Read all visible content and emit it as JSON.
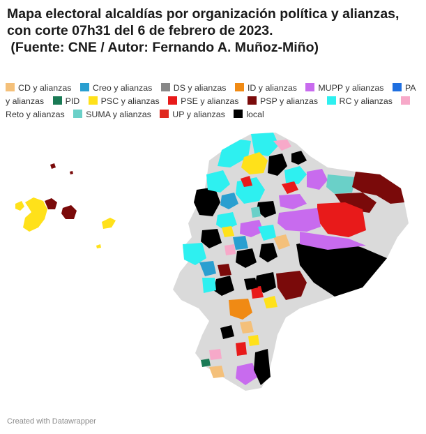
{
  "title_lines": [
    "Mapa electoral alcaldías por organización política y alianzas,",
    "con corte 07h31 del 6 de febrero de 2023.",
    " (Fuente: CNE / Autor: Fernando A. Muñoz-Miño)"
  ],
  "legend": [
    {
      "label": "CD y alianzas",
      "color": "#f4c07a"
    },
    {
      "label": "Creo y alianzas",
      "color": "#2a9fd0"
    },
    {
      "label": "DS y alianzas",
      "color": "#888888"
    },
    {
      "label": "ID y alianzas",
      "color": "#f08a14"
    },
    {
      "label": "MUPP y alianzas",
      "color": "#c86bee"
    },
    {
      "label": "PA y alianzas",
      "color": "#1f6fe0"
    },
    {
      "label": "PID",
      "color": "#1a7a55"
    },
    {
      "label": "PSC y alianzas",
      "color": "#ffe11a"
    },
    {
      "label": "PSE y alianzas",
      "color": "#e81a1a"
    },
    {
      "label": "PSP y alianzas",
      "color": "#7a0a0a"
    },
    {
      "label": "RC y alianzas",
      "color": "#2ef0f0"
    },
    {
      "label": "Reto y alianzas",
      "color": "#f7a9c9"
    },
    {
      "label": "SUMA y alianzas",
      "color": "#6ad0c8"
    },
    {
      "label": "UP y alianzas",
      "color": "#e0291f"
    },
    {
      "label": "local",
      "color": "#000000"
    }
  ],
  "no_data_color": "#dadada",
  "footer": "Created with Datawrapper"
}
